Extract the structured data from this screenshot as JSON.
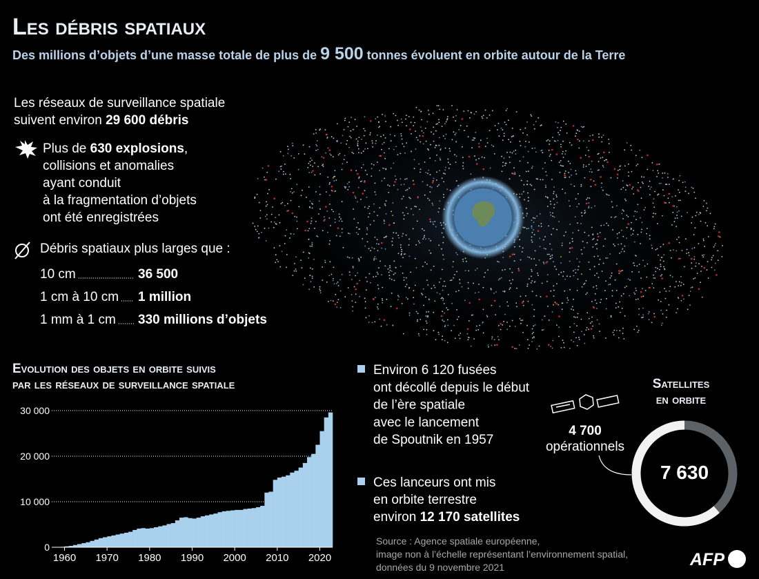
{
  "header": {
    "title": "Les débris spatiaux",
    "subtitle": [
      "Des millions d’objets d’une masse totale de plus de ",
      "9 500",
      " tonnes évoluent en orbite autour de la Terre"
    ]
  },
  "facts": {
    "tracked": {
      "line1": "Les réseaux de surveillance spatiale",
      "line2": "suivent environ ",
      "line2_bold": "29 600 débris"
    },
    "explosions": {
      "line1": "Plus de ",
      "line1_bold": "630 explosions",
      "line1_end": ",",
      "lines": [
        "collisions et anomalies",
        "ayant conduit",
        "à la fragmentation d’objets",
        "ont été enregistrées"
      ]
    },
    "sizes": {
      "heading": "Débris spatiaux plus larges que :",
      "rows": [
        {
          "label": "10 cm",
          "value": "36 500"
        },
        {
          "label": "1 cm à 10 cm",
          "value": "1 million"
        },
        {
          "label": "1 mm à 1 cm",
          "value": "330 millions d’objets"
        }
      ]
    }
  },
  "chart_data": {
    "type": "step",
    "title": [
      "Evolution des objets en orbite suivis",
      "par les réseaux de surveillance spatiale"
    ],
    "x": [
      1957,
      1958,
      1959,
      1960,
      1961,
      1962,
      1963,
      1964,
      1965,
      1966,
      1967,
      1968,
      1969,
      1970,
      1971,
      1972,
      1973,
      1974,
      1975,
      1976,
      1977,
      1978,
      1979,
      1980,
      1981,
      1982,
      1983,
      1984,
      1985,
      1986,
      1987,
      1988,
      1989,
      1990,
      1991,
      1992,
      1993,
      1994,
      1995,
      1996,
      1997,
      1998,
      1999,
      2000,
      2001,
      2002,
      2003,
      2004,
      2005,
      2006,
      2007,
      2008,
      2009,
      2010,
      2011,
      2012,
      2013,
      2014,
      2015,
      2016,
      2017,
      2018,
      2019,
      2020,
      2021,
      2022
    ],
    "values": [
      0,
      50,
      100,
      200,
      300,
      500,
      700,
      900,
      1100,
      1400,
      1700,
      2000,
      2200,
      2400,
      2600,
      2800,
      3000,
      3200,
      3400,
      3800,
      4100,
      4200,
      4100,
      4200,
      4400,
      4600,
      4800,
      5100,
      5300,
      5900,
      6500,
      6600,
      6400,
      6300,
      6500,
      6800,
      7000,
      7200,
      7400,
      7700,
      7900,
      8000,
      8100,
      8200,
      8200,
      8400,
      8500,
      8600,
      8800,
      9100,
      12000,
      12200,
      14800,
      15300,
      15500,
      15800,
      16400,
      16800,
      17500,
      18500,
      19800,
      20500,
      22500,
      25500,
      28500,
      29600
    ],
    "color": "#a9d0ec",
    "xlim": [
      1957,
      2023
    ],
    "ylim": [
      0,
      30000
    ],
    "yticks": [
      0,
      {
        "value": 10000,
        "label": "10 000"
      },
      {
        "value": 20000,
        "label": "20 000"
      },
      {
        "value": 30000,
        "label": "30 000"
      }
    ],
    "xticks": [
      1960,
      1970,
      1980,
      1990,
      2000,
      2010,
      2020
    ],
    "grid": true
  },
  "launches": {
    "lines": [
      "Environ 6 120 fusées",
      "ont décollé depuis le début",
      "de l’ère spatiale",
      "avec le lancement",
      "de Spoutnik en 1957"
    ]
  },
  "launched_satellites": {
    "lines": [
      "Ces lanceurs ont mis",
      "en orbite terrestre"
    ],
    "last": "environ ",
    "last_bold": "12 170 satellites"
  },
  "satellites": {
    "title": [
      "Satellites",
      "en orbite"
    ],
    "total": 7630,
    "total_label": "7 630",
    "operational": 4700,
    "operational_label": "4 700",
    "operational_text": "opérationnels",
    "operational_color": "#f2f2f2",
    "total_color": "#5d6266"
  },
  "source": [
    "Source : Agence spatiale européenne,",
    "image non à l’échelle représentant l’environnement spatial,",
    "données du 9 novembre 2021"
  ],
  "logo": "AFP"
}
